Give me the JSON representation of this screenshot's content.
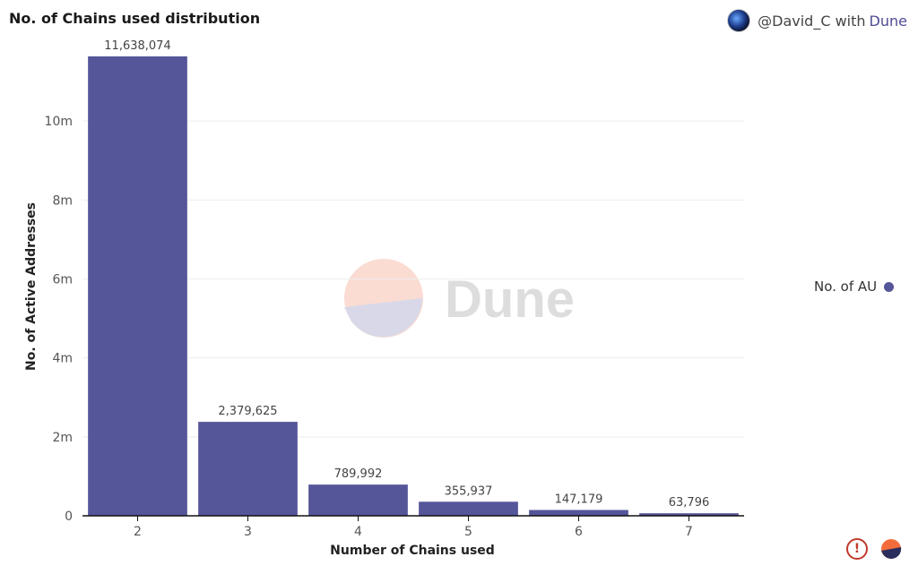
{
  "header": {
    "title": "No. of Chains used distribution",
    "attribution_user": "@David_C with",
    "attribution_brand": "Dune",
    "avatar_icon": "user-avatar"
  },
  "watermark": {
    "text": "Dune"
  },
  "legend": {
    "label": "No. of AU"
  },
  "colors": {
    "bar": "#55559a",
    "grid": "#eeeeee",
    "axis": "#111111"
  },
  "footer": {
    "alert_icon": "exclamation-circle-icon",
    "brand_icon": "dune-logo-icon"
  },
  "chart_data": {
    "type": "bar",
    "categories": [
      "2",
      "3",
      "4",
      "5",
      "6",
      "7"
    ],
    "series": [
      {
        "name": "No. of AU",
        "values": [
          11638074,
          2379625,
          789992,
          355937,
          147179,
          63796
        ]
      }
    ],
    "data_labels": [
      "11,638,074",
      "2,379,625",
      "789,992",
      "355,937",
      "147,179",
      "63,796"
    ],
    "xlabel": "Number of Chains used",
    "ylabel": "No. of Active Addresses",
    "ylim": [
      0,
      12000000
    ],
    "yticks": [
      0,
      2000000,
      4000000,
      6000000,
      8000000,
      10000000
    ],
    "ytick_labels": [
      "0",
      "2m",
      "4m",
      "6m",
      "8m",
      "10m"
    ],
    "grid": true,
    "legend_position": "right"
  }
}
